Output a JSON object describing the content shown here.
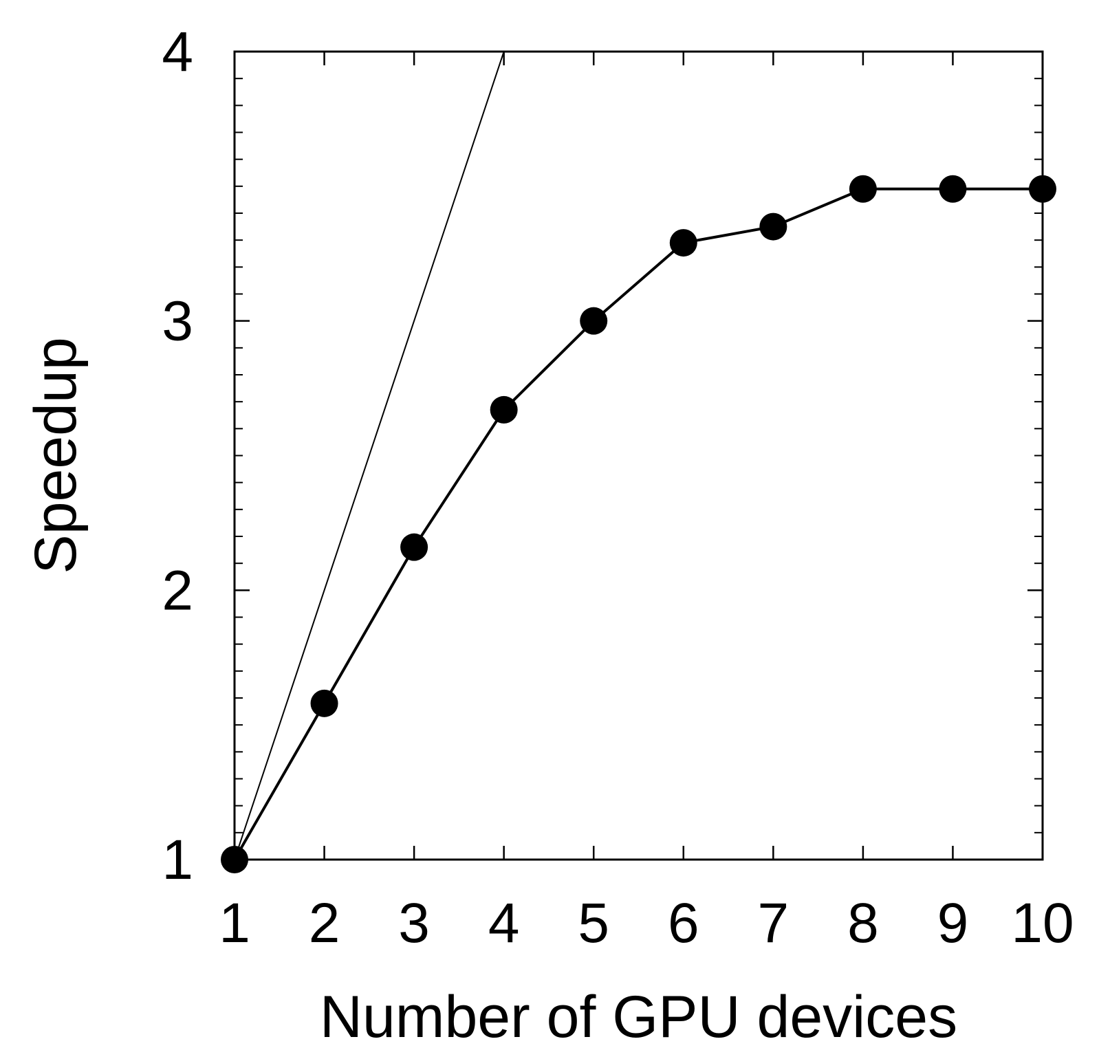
{
  "chart_data": {
    "type": "line",
    "title": "",
    "xlabel": "Number of GPU devices",
    "ylabel": "Speedup",
    "xlim": [
      1,
      10
    ],
    "ylim": [
      1,
      4
    ],
    "x_ticks": [
      "1",
      "2",
      "3",
      "4",
      "5",
      "6",
      "7",
      "8",
      "9",
      "10"
    ],
    "y_ticks": [
      "1",
      "2",
      "3",
      "4"
    ],
    "y_minor_step": 0.1,
    "grid": false,
    "series": [
      {
        "style": "line-with-markers",
        "color": "#000000",
        "marker": "filled-circle",
        "x": [
          1,
          2,
          3,
          4,
          5,
          6,
          7,
          8,
          9,
          10
        ],
        "y": [
          1.0,
          1.58,
          2.16,
          2.67,
          3.0,
          3.29,
          3.35,
          3.49,
          3.49,
          3.49
        ]
      },
      {
        "style": "thin-line",
        "color": "#000000",
        "x": [
          1,
          4
        ],
        "y": [
          1,
          4
        ]
      }
    ]
  }
}
